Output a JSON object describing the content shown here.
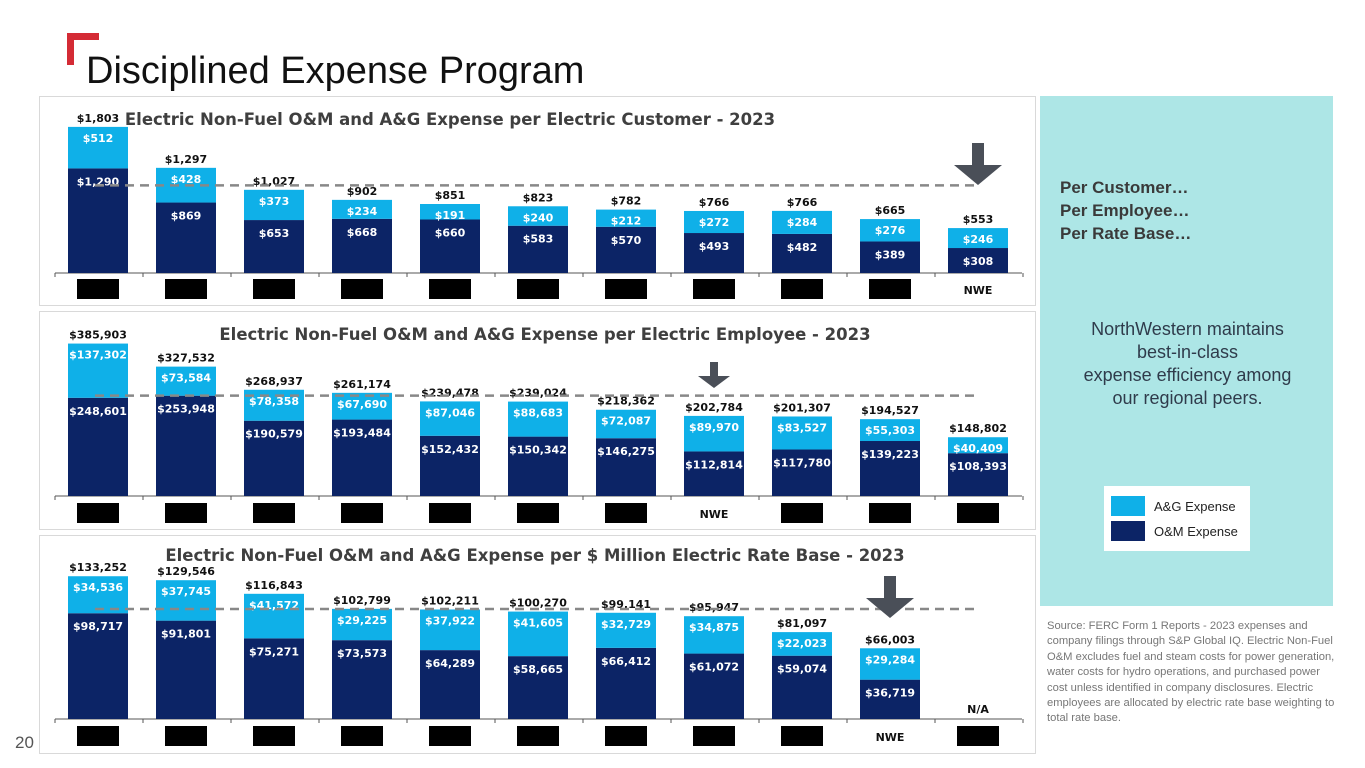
{
  "page": {
    "title": "Disciplined Expense Program",
    "page_number": "20"
  },
  "sidebar": {
    "heading_lines": [
      "Per Customer…",
      "Per Employee…",
      "Per Rate Base…"
    ],
    "message_lines": [
      "NorthWestern maintains",
      "best-in-class",
      "expense efficiency among",
      "our regional peers."
    ],
    "legend": [
      {
        "label": "A&G Expense",
        "color": "#0fb0e8"
      },
      {
        "label": "O&M Expense",
        "color": "#0c2466"
      }
    ],
    "source": "Source:  FERC Form 1 Reports - 2023 expenses and company filings through S&P Global IQ. Electric Non-Fuel O&M excludes fuel and steam costs for power generation, water costs for hydro operations, and purchased power cost unless identified in company disclosures. Electric employees are allocated by electric rate base weighting to total rate base."
  },
  "colors": {
    "ag": "#0fb0e8",
    "om": "#0c2466",
    "accent": "#d42b35",
    "arrow": "#4a4f58",
    "redacted": "#000000"
  },
  "chart_data": [
    {
      "type": "bar",
      "stacked": true,
      "title": "Electric Non-Fuel O&M and A&G Expense per Electric Customer - 2023",
      "categories": [
        "",
        "",
        "",
        "",
        "",
        "",
        "",
        "",
        "",
        "",
        "NWE"
      ],
      "redacted_categories": [
        true,
        true,
        true,
        true,
        true,
        true,
        true,
        true,
        true,
        true,
        false
      ],
      "series": [
        {
          "name": "O&M Expense",
          "values": [
            1290,
            869,
            653,
            668,
            660,
            583,
            570,
            493,
            482,
            389,
            308
          ],
          "labels": [
            "$1,290",
            "$869",
            "$653",
            "$668",
            "$660",
            "$583",
            "$570",
            "$493",
            "$482",
            "$389",
            "$308"
          ]
        },
        {
          "name": "A&G Expense",
          "values": [
            512,
            428,
            373,
            234,
            191,
            240,
            212,
            272,
            284,
            276,
            246
          ],
          "labels": [
            "$512",
            "$428",
            "$373",
            "$234",
            "$191",
            "$240",
            "$212",
            "$272",
            "$284",
            "$276",
            "$246"
          ]
        }
      ],
      "totals": [
        1803,
        1297,
        1027,
        902,
        851,
        823,
        782,
        766,
        766,
        665,
        553
      ],
      "total_labels": [
        "$1,803",
        "$1,297",
        "$1,027",
        "$902",
        "$851",
        "$823",
        "$782",
        "$766",
        "$766",
        "$665",
        "$553"
      ],
      "average_line": 1080,
      "highlight_index": 10,
      "ylim": [
        0,
        1850
      ]
    },
    {
      "type": "bar",
      "stacked": true,
      "title": "Electric Non-Fuel O&M and A&G Expense per Electric Employee - 2023",
      "categories": [
        "",
        "",
        "",
        "",
        "",
        "",
        "",
        "NWE",
        "",
        "",
        ""
      ],
      "redacted_categories": [
        true,
        true,
        true,
        true,
        true,
        true,
        true,
        false,
        true,
        true,
        true
      ],
      "series": [
        {
          "name": "O&M Expense",
          "values": [
            248601,
            253948,
            190579,
            193484,
            152432,
            150342,
            146275,
            112814,
            117780,
            139223,
            108393
          ],
          "labels": [
            "$248,601",
            "$253,948",
            "$190,579",
            "$193,484",
            "$152,432",
            "$150,342",
            "$146,275",
            "$112,814",
            "$117,780",
            "$139,223",
            "$108,393"
          ]
        },
        {
          "name": "A&G Expense",
          "values": [
            137302,
            73584,
            78358,
            67690,
            87046,
            88683,
            72087,
            89970,
            83527,
            55303,
            40409
          ],
          "labels": [
            "$137,302",
            "$73,584",
            "$78,358",
            "$67,690",
            "$87,046",
            "$88,683",
            "$72,087",
            "$89,970",
            "$83,527",
            "$55,303",
            "$40,409"
          ]
        }
      ],
      "totals": [
        385903,
        327532,
        268937,
        261174,
        239478,
        239024,
        218362,
        202784,
        201307,
        194527,
        148802
      ],
      "total_labels": [
        "$385,903",
        "$327,532",
        "$268,937",
        "$261,174",
        "$239,478",
        "$239,024",
        "$218,362",
        "$202,784",
        "$201,307",
        "$194,527",
        "$148,802"
      ],
      "average_line": 254000,
      "highlight_index": 7,
      "ylim": [
        0,
        400000
      ]
    },
    {
      "type": "bar",
      "stacked": true,
      "title": "Electric Non-Fuel O&M and A&G Expense per $ Million Electric Rate Base - 2023",
      "categories": [
        "",
        "",
        "",
        "",
        "",
        "",
        "",
        "",
        "",
        "NWE",
        ""
      ],
      "redacted_categories": [
        true,
        true,
        true,
        true,
        true,
        true,
        true,
        true,
        true,
        false,
        true
      ],
      "series": [
        {
          "name": "O&M Expense",
          "values": [
            98717,
            91801,
            75271,
            73573,
            64289,
            58665,
            66412,
            61072,
            59074,
            36719,
            null
          ],
          "labels": [
            "$98,717",
            "$91,801",
            "$75,271",
            "$73,573",
            "$64,289",
            "$58,665",
            "$66,412",
            "$61,072",
            "$59,074",
            "$36,719",
            ""
          ]
        },
        {
          "name": "A&G Expense",
          "values": [
            34536,
            37745,
            41572,
            29225,
            37922,
            41605,
            32729,
            34875,
            22023,
            29284,
            null
          ],
          "labels": [
            "$34,536",
            "$37,745",
            "$41,572",
            "$29,225",
            "$37,922",
            "$41,605",
            "$32,729",
            "$34,875",
            "$22,023",
            "$29,284",
            ""
          ]
        }
      ],
      "totals": [
        133252,
        129546,
        116843,
        102799,
        102211,
        100270,
        99141,
        95947,
        81097,
        66003,
        null
      ],
      "total_labels": [
        "$133,252",
        "$129,546",
        "$116,843",
        "$102,799",
        "$102,211",
        "$100,270",
        "$99,141",
        "$95,947",
        "$81,097",
        "$66,003",
        "N/A"
      ],
      "average_line": 102700,
      "highlight_index": 9,
      "ylim": [
        0,
        140000
      ]
    }
  ]
}
